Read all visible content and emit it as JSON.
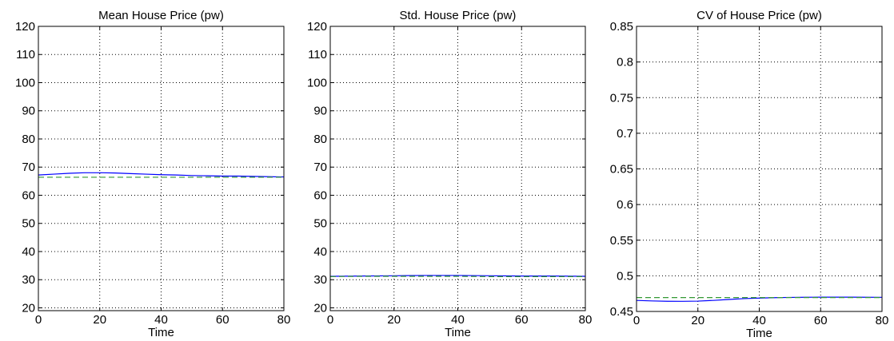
{
  "chart_data": [
    {
      "type": "line",
      "title": "Mean House Price (pw)",
      "xlabel": "Time",
      "ylabel": "",
      "xlim": [
        0,
        80
      ],
      "ylim": [
        19,
        120
      ],
      "xticks": [
        0,
        20,
        40,
        60,
        80
      ],
      "yticks": [
        20,
        30,
        40,
        50,
        60,
        70,
        80,
        90,
        100,
        110,
        120
      ],
      "xtick_labels": [
        "0",
        "20",
        "40",
        "60",
        "80"
      ],
      "ytick_labels": [
        "20",
        "30",
        "40",
        "50",
        "60",
        "70",
        "80",
        "90",
        "100",
        "110",
        "120"
      ],
      "grid": true,
      "series": [
        {
          "style": "solid",
          "color": "#0000ff",
          "x": [
            0,
            5,
            10,
            15,
            20,
            25,
            30,
            35,
            40,
            45,
            50,
            55,
            60,
            65,
            70,
            75,
            80
          ],
          "y": [
            67.2,
            67.5,
            67.8,
            68.0,
            68.0,
            67.9,
            67.7,
            67.5,
            67.3,
            67.2,
            67.0,
            66.9,
            66.8,
            66.8,
            66.7,
            66.6,
            66.5
          ]
        },
        {
          "style": "dashed",
          "color": "#339933",
          "x": [
            0,
            10,
            20,
            30,
            40,
            50,
            60,
            70,
            80
          ],
          "y": [
            66.4,
            66.4,
            66.4,
            66.4,
            66.4,
            66.4,
            66.4,
            66.4,
            66.4
          ]
        }
      ]
    },
    {
      "type": "line",
      "title": "Std. House Price (pw)",
      "xlabel": "Time",
      "ylabel": "",
      "xlim": [
        0,
        80
      ],
      "ylim": [
        19,
        120
      ],
      "xticks": [
        0,
        20,
        40,
        60,
        80
      ],
      "yticks": [
        20,
        30,
        40,
        50,
        60,
        70,
        80,
        90,
        100,
        110,
        120
      ],
      "xtick_labels": [
        "0",
        "20",
        "40",
        "60",
        "80"
      ],
      "ytick_labels": [
        "20",
        "30",
        "40",
        "50",
        "60",
        "70",
        "80",
        "90",
        "100",
        "110",
        "120"
      ],
      "grid": true,
      "series": [
        {
          "style": "solid",
          "color": "#0000ff",
          "x": [
            0,
            10,
            20,
            30,
            40,
            50,
            60,
            70,
            80
          ],
          "y": [
            31.2,
            31.3,
            31.4,
            31.5,
            31.5,
            31.4,
            31.3,
            31.3,
            31.2
          ]
        },
        {
          "style": "dashed",
          "color": "#339933",
          "x": [
            0,
            10,
            20,
            30,
            40,
            50,
            60,
            70,
            80
          ],
          "y": [
            31.1,
            31.2,
            31.2,
            31.2,
            31.2,
            31.1,
            31.1,
            31.1,
            31.1
          ]
        }
      ]
    },
    {
      "type": "line",
      "title": "CV of House Price (pw)",
      "xlabel": "Time",
      "ylabel": "",
      "xlim": [
        0,
        80
      ],
      "ylim": [
        0.45,
        0.85
      ],
      "xticks": [
        0,
        20,
        40,
        60,
        80
      ],
      "yticks": [
        0.45,
        0.5,
        0.55,
        0.6,
        0.65,
        0.7,
        0.75,
        0.8,
        0.85
      ],
      "xtick_labels": [
        "0",
        "20",
        "40",
        "60",
        "80"
      ],
      "ytick_labels": [
        "0.45",
        "0.5",
        "0.55",
        "0.6",
        "0.65",
        "0.7",
        "0.75",
        "0.8",
        "0.85"
      ],
      "grid": true,
      "series": [
        {
          "style": "solid",
          "color": "#0000ff",
          "x": [
            0,
            5,
            10,
            15,
            20,
            25,
            30,
            35,
            40,
            45,
            50,
            55,
            60,
            65,
            70,
            75,
            80
          ],
          "y": [
            0.4655,
            0.4648,
            0.4643,
            0.4642,
            0.4645,
            0.4655,
            0.4668,
            0.468,
            0.4688,
            0.4693,
            0.4697,
            0.4699,
            0.47,
            0.47,
            0.47,
            0.4699,
            0.4698
          ]
        },
        {
          "style": "dashed",
          "color": "#339933",
          "x": [
            0,
            10,
            20,
            30,
            40,
            50,
            60,
            70,
            80
          ],
          "y": [
            0.4695,
            0.4695,
            0.4695,
            0.4695,
            0.4695,
            0.4695,
            0.4695,
            0.4695,
            0.4695
          ]
        }
      ]
    }
  ]
}
